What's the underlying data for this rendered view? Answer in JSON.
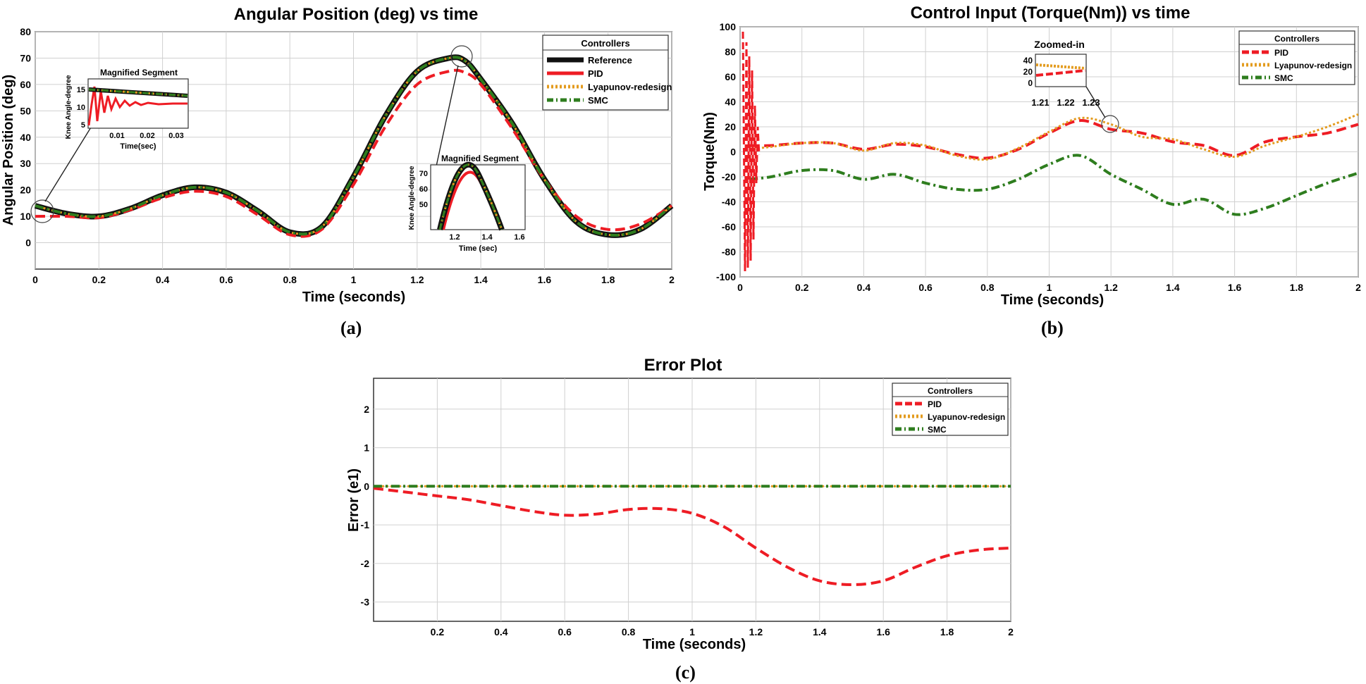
{
  "colors": {
    "reference": "#111111",
    "pid": "#ee1c24",
    "lyapunov": "#e39b1e",
    "smc": "#2e7d1e",
    "grid": "#d0d0d0",
    "plot_bg": "#ffffff"
  },
  "panel_labels": [
    "(a)",
    "(b)",
    "(c)"
  ],
  "chart_data": [
    {
      "id": "a",
      "type": "line",
      "title": "Angular Position (deg) vs time",
      "xlabel": "Time (seconds)",
      "ylabel": "Angular Position (deg)",
      "xlim": [
        0,
        2
      ],
      "ylim": [
        -10,
        80
      ],
      "xticks": [
        0,
        0.2,
        0.4,
        0.6,
        0.8,
        1,
        1.2,
        1.4,
        1.6,
        1.8,
        2
      ],
      "xtick_labels": [
        "0",
        "0.2",
        "0.4",
        "0.6",
        "0.8",
        "1",
        "1.2",
        "1.4",
        "1.6",
        "1.8",
        "2"
      ],
      "yticks": [
        0,
        10,
        20,
        30,
        40,
        50,
        60,
        70,
        80
      ],
      "ytick_labels": [
        "0",
        "10",
        "20",
        "30",
        "40",
        "50",
        "60",
        "70",
        "80"
      ],
      "grid": true,
      "legend": {
        "title": "Controllers",
        "position": "top-right",
        "entries": [
          "Reference",
          "PID",
          "Lyapunov-redesign",
          "SMC"
        ]
      },
      "x": [
        0,
        0.1,
        0.2,
        0.3,
        0.4,
        0.5,
        0.6,
        0.7,
        0.8,
        0.9,
        1.0,
        1.1,
        1.2,
        1.3,
        1.35,
        1.4,
        1.5,
        1.6,
        1.7,
        1.8,
        1.9,
        2.0
      ],
      "series": [
        {
          "name": "Reference",
          "style": "reference",
          "values": [
            14,
            11,
            10,
            13,
            18,
            21,
            19,
            12,
            4,
            6,
            25,
            48,
            65,
            70,
            69,
            62,
            45,
            24,
            8,
            3,
            5,
            14
          ]
        },
        {
          "name": "PID",
          "style": "pid",
          "values": [
            10,
            10,
            9.5,
            12.5,
            17,
            19.5,
            17.5,
            10.5,
            3,
            5,
            22,
            44,
            60,
            65,
            64.5,
            60,
            43,
            24,
            10,
            5,
            7,
            14
          ]
        },
        {
          "name": "Lyapunov-redesign",
          "style": "lyapunov",
          "values": [
            14,
            11,
            10,
            13,
            18,
            21,
            19,
            12,
            4,
            6,
            25,
            48,
            65,
            70,
            69,
            62,
            45,
            24,
            8,
            3,
            5,
            14
          ]
        },
        {
          "name": "SMC",
          "style": "smc",
          "values": [
            14,
            11,
            10,
            13,
            18,
            21,
            19,
            12,
            4,
            6,
            25,
            48,
            65,
            70,
            69,
            62,
            45,
            24,
            8,
            3,
            5,
            14
          ]
        }
      ],
      "insets": [
        {
          "title": "Magnified Segment",
          "xlabel": "Time(sec)",
          "ylabel": "Knee Angle-degree",
          "xticks": [
            "0.01",
            "0.02",
            "0.03"
          ],
          "yticks": [
            "5",
            "10",
            "15"
          ]
        },
        {
          "title": "Magnified Segment",
          "xlabel": "Time (sec)",
          "ylabel": "Knee Angle-degree",
          "xticks": [
            "1.2",
            "1.4",
            "1.6"
          ],
          "yticks": [
            "50",
            "60",
            "70"
          ]
        }
      ]
    },
    {
      "id": "b",
      "type": "line",
      "title": "Control Input (Torque(Nm)) vs time",
      "xlabel": "Time (seconds)",
      "ylabel": "Torque(Nm)",
      "xlim": [
        0,
        2
      ],
      "ylim": [
        -100,
        100
      ],
      "xticks": [
        0,
        0.2,
        0.4,
        0.6,
        0.8,
        1,
        1.2,
        1.4,
        1.6,
        1.8,
        2
      ],
      "xtick_labels": [
        "0",
        "0.2",
        "0.4",
        "0.6",
        "0.8",
        "1",
        "1.2",
        "1.4",
        "1.6",
        "1.8",
        "2"
      ],
      "yticks": [
        -100,
        -80,
        -60,
        -40,
        -20,
        0,
        20,
        40,
        60,
        80,
        100
      ],
      "ytick_labels": [
        "-100",
        "-80",
        "-60",
        "-40",
        "-20",
        "0",
        "20",
        "40",
        "60",
        "80",
        "100"
      ],
      "grid": true,
      "legend": {
        "title": "Controllers",
        "position": "top-right",
        "entries": [
          "PID",
          "Lyapunov-redesign",
          "SMC"
        ]
      },
      "x": [
        0.03,
        0.1,
        0.2,
        0.3,
        0.4,
        0.5,
        0.6,
        0.7,
        0.8,
        0.9,
        1.0,
        1.1,
        1.2,
        1.3,
        1.4,
        1.5,
        1.6,
        1.7,
        1.8,
        1.9,
        2.0
      ],
      "series": [
        {
          "name": "PID",
          "style": "pid",
          "values": [
            5,
            5,
            7,
            7,
            2,
            6,
            4,
            -2,
            -5,
            2,
            15,
            25,
            18,
            15,
            8,
            5,
            -3,
            8,
            12,
            15,
            22
          ]
        },
        {
          "name": "Lyapunov-redesign",
          "style": "lyapunov",
          "values": [
            2,
            4,
            7,
            7,
            1,
            7,
            5,
            -3,
            -6,
            3,
            16,
            27,
            22,
            12,
            10,
            2,
            -4,
            5,
            12,
            20,
            30
          ]
        },
        {
          "name": "SMC",
          "style": "smc",
          "values": [
            -22,
            -20,
            -15,
            -15,
            -22,
            -18,
            -25,
            -30,
            -30,
            -22,
            -10,
            -3,
            -18,
            -30,
            -42,
            -38,
            -50,
            -45,
            -35,
            -25,
            -17
          ]
        }
      ],
      "insets": [
        {
          "title": "Zoomed-in",
          "xticks": [
            "1.21",
            "1.22",
            "1.23"
          ],
          "yticks": [
            "0",
            "20",
            "40"
          ]
        }
      ]
    },
    {
      "id": "c",
      "type": "line",
      "title": "Error Plot",
      "xlabel": "Time (seconds)",
      "ylabel": "Error (e1)",
      "xlim": [
        0,
        2
      ],
      "ylim": [
        -3.5,
        2.8
      ],
      "xticks": [
        0.2,
        0.4,
        0.6,
        0.8,
        1,
        1.2,
        1.4,
        1.6,
        1.8,
        2
      ],
      "xtick_labels": [
        "0.2",
        "0.4",
        "0.6",
        "0.8",
        "1",
        "1.2",
        "1.4",
        "1.6",
        "1.8",
        "2"
      ],
      "yticks": [
        -3,
        -2,
        -1,
        0,
        1,
        2
      ],
      "ytick_labels": [
        "-3",
        "-2",
        "-1",
        "0",
        "1",
        "2"
      ],
      "grid": true,
      "legend": {
        "title": "Controllers",
        "position": "top-right",
        "entries": [
          "PID",
          "Lyapunov-redesign",
          "SMC"
        ]
      },
      "x": [
        0,
        0.1,
        0.2,
        0.3,
        0.4,
        0.5,
        0.6,
        0.7,
        0.8,
        0.9,
        1.0,
        1.1,
        1.2,
        1.3,
        1.4,
        1.5,
        1.6,
        1.7,
        1.8,
        1.9,
        2.0
      ],
      "series": [
        {
          "name": "PID",
          "style": "pid",
          "values": [
            -0.05,
            -0.15,
            -0.25,
            -0.35,
            -0.5,
            -0.65,
            -0.75,
            -0.72,
            -0.6,
            -0.58,
            -0.7,
            -1.05,
            -1.6,
            -2.1,
            -2.45,
            -2.55,
            -2.45,
            -2.1,
            -1.8,
            -1.65,
            -1.6
          ]
        },
        {
          "name": "Lyapunov-redesign",
          "style": "lyapunov",
          "values": [
            0,
            0,
            0,
            0,
            0,
            0,
            0,
            0,
            0,
            0,
            0,
            0,
            0,
            0,
            0,
            0,
            0,
            0,
            0,
            0,
            0
          ]
        },
        {
          "name": "SMC",
          "style": "smc",
          "values": [
            0,
            0,
            0,
            0,
            0,
            0,
            0,
            0,
            0,
            0,
            0,
            0,
            0,
            0,
            0,
            0,
            0,
            0,
            0,
            0,
            0
          ]
        }
      ],
      "insets": []
    }
  ]
}
